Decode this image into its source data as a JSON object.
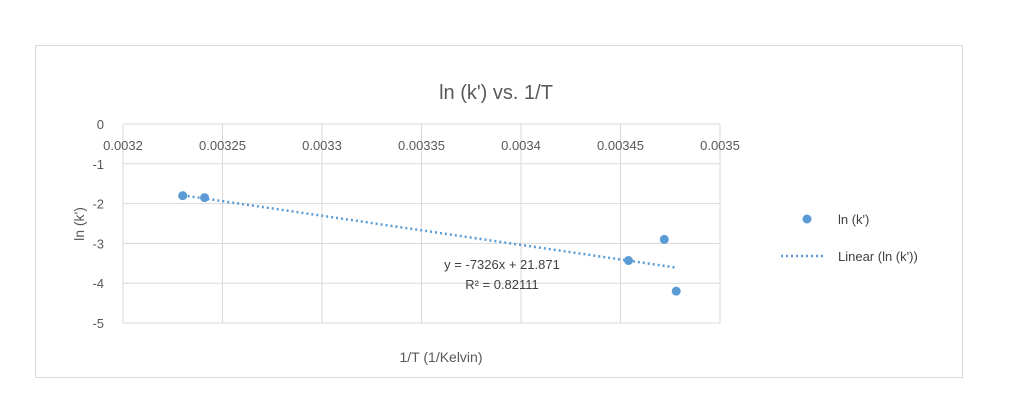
{
  "chart_data": {
    "type": "scatter",
    "title": "ln (k') vs. 1/T",
    "xlabel": "1/T (1/Kelvin)",
    "ylabel": "ln (k')",
    "xlim": [
      0.0032,
      0.0035
    ],
    "ylim": [
      -5,
      0
    ],
    "xticks": [
      "0.0032",
      "0.00325",
      "0.0033",
      "0.00335",
      "0.0034",
      "0.00345",
      "0.0035"
    ],
    "yticks": [
      "0",
      "-1",
      "-2",
      "-3",
      "-4",
      "-5"
    ],
    "grid": true,
    "legend_position": "right",
    "series": [
      {
        "name": "ln (k')",
        "x": [
          0.00323,
          0.003241,
          0.003454,
          0.003472,
          0.003478
        ],
        "y": [
          -1.8,
          -1.85,
          -3.43,
          -2.9,
          -4.2
        ],
        "color": "#5b9bd5"
      }
    ],
    "trendline": {
      "name": "Linear  (ln (k'))",
      "slope": -7326,
      "intercept": 21.871,
      "x_range": [
        0.00323,
        0.003478
      ],
      "equation": "y = -7326x + 21.871",
      "r2": "R² = 0.82111",
      "color": "#5b9bd5"
    }
  }
}
